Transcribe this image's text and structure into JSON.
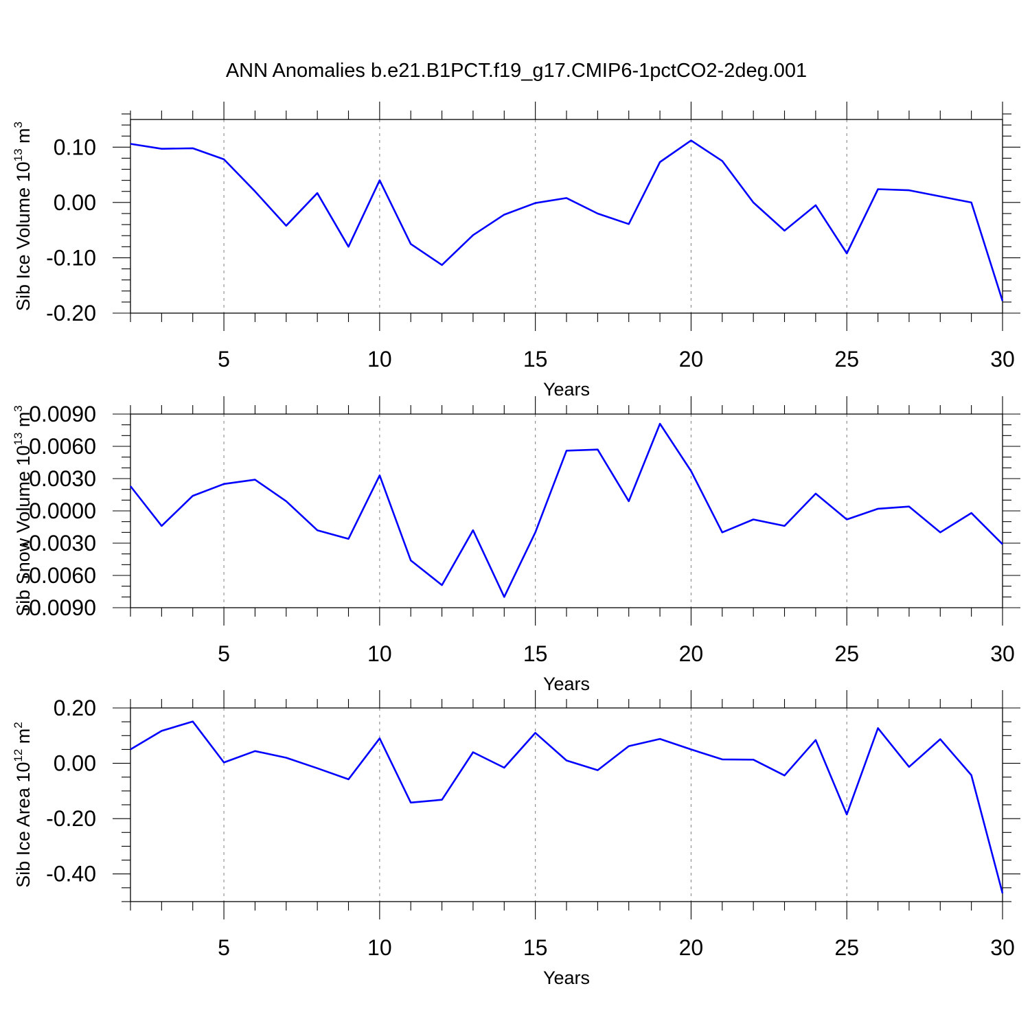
{
  "title": "ANN Anomalies b.e21.B1PCT.f19_g17.CMIP6-1pctCO2-2deg.001",
  "colors": {
    "line": "#0000ff",
    "grid": "#888888",
    "axes": "#000000"
  },
  "chart_data": [
    {
      "type": "line",
      "ylabel_main": "Sib Ice Volume 10",
      "ylabel_exp": "13",
      "ylabel_unit": " m",
      "ylabel_unit_exp": "3",
      "xlabel": "Years",
      "xlim": [
        2,
        30
      ],
      "ylim": [
        -0.2,
        0.15
      ],
      "yticks": [
        0.1,
        0.0,
        -0.1,
        -0.2
      ],
      "ytick_labels": [
        "0.10",
        "0.00",
        "-0.10",
        "-0.20"
      ],
      "yminor_step": 0.02,
      "xticks": [
        5,
        10,
        15,
        20,
        25,
        30
      ],
      "xtick_labels": [
        "5",
        "10",
        "15",
        "20",
        "25",
        "30"
      ],
      "grid_x": "dashed vertical at major ticks",
      "x": [
        2,
        3,
        4,
        5,
        6,
        7,
        8,
        9,
        10,
        11,
        12,
        13,
        14,
        15,
        16,
        17,
        18,
        19,
        20,
        21,
        22,
        23,
        24,
        25,
        26,
        27,
        28,
        29,
        30
      ],
      "y": [
        0.106,
        0.097,
        0.098,
        0.078,
        0.02,
        -0.042,
        0.017,
        -0.08,
        0.04,
        -0.075,
        -0.113,
        -0.059,
        -0.022,
        -0.001,
        0.008,
        -0.02,
        -0.039,
        0.073,
        0.112,
        0.075,
        0.0,
        -0.051,
        -0.005,
        -0.092,
        0.024,
        0.022,
        0.011,
        0.0,
        -0.178
      ]
    },
    {
      "type": "line",
      "ylabel_main": "Sib Snow Volume 10",
      "ylabel_exp": "13",
      "ylabel_unit": " m",
      "ylabel_unit_exp": "3",
      "xlabel": "Years",
      "xlim": [
        2,
        30
      ],
      "ylim": [
        -0.009,
        0.009
      ],
      "yticks": [
        0.009,
        0.006,
        0.003,
        0.0,
        -0.003,
        -0.006,
        -0.009
      ],
      "ytick_labels": [
        "0.0090",
        "0.0060",
        "0.0030",
        "0.0000",
        "-0.0030",
        "-0.0060",
        "-0.0090"
      ],
      "yminor_step": 0.001,
      "xticks": [
        5,
        10,
        15,
        20,
        25,
        30
      ],
      "xtick_labels": [
        "5",
        "10",
        "15",
        "20",
        "25",
        "30"
      ],
      "grid_x": "dashed vertical at major ticks",
      "x": [
        2,
        3,
        4,
        5,
        6,
        7,
        8,
        9,
        10,
        11,
        12,
        13,
        14,
        15,
        16,
        17,
        18,
        19,
        20,
        21,
        22,
        23,
        24,
        25,
        26,
        27,
        28,
        29,
        30
      ],
      "y": [
        0.0023,
        -0.0014,
        0.0014,
        0.0025,
        0.0029,
        0.0009,
        -0.0018,
        -0.0026,
        0.0033,
        -0.0046,
        -0.0069,
        -0.0018,
        -0.008,
        -0.002,
        0.0056,
        0.0057,
        0.0009,
        0.0081,
        0.0037,
        -0.002,
        -0.0008,
        -0.0014,
        0.0016,
        -0.0008,
        0.0002,
        0.0004,
        -0.002,
        -0.0002,
        -0.0031
      ]
    },
    {
      "type": "line",
      "ylabel_main": "Sib Ice Area 10",
      "ylabel_exp": "12",
      "ylabel_unit": " m",
      "ylabel_unit_exp": "2",
      "xlabel": "Years",
      "xlim": [
        2,
        30
      ],
      "ylim": [
        -0.5,
        0.2
      ],
      "yticks": [
        0.2,
        0.0,
        -0.2,
        -0.4
      ],
      "ytick_labels": [
        "0.20",
        "0.00",
        "-0.20",
        "-0.40"
      ],
      "yminor_step": 0.05,
      "xticks": [
        5,
        10,
        15,
        20,
        25,
        30
      ],
      "xtick_labels": [
        "5",
        "10",
        "15",
        "20",
        "25",
        "30"
      ],
      "grid_x": "dashed vertical at major ticks",
      "x": [
        2,
        3,
        4,
        5,
        6,
        7,
        8,
        9,
        10,
        11,
        12,
        13,
        14,
        15,
        16,
        17,
        18,
        19,
        20,
        21,
        22,
        23,
        24,
        25,
        26,
        27,
        28,
        29,
        30
      ],
      "y": [
        0.05,
        0.117,
        0.151,
        0.003,
        0.044,
        0.02,
        -0.018,
        -0.058,
        0.09,
        -0.142,
        -0.132,
        0.04,
        -0.016,
        0.11,
        0.01,
        -0.025,
        0.062,
        0.088,
        0.05,
        0.014,
        0.013,
        -0.044,
        0.084,
        -0.185,
        0.127,
        -0.013,
        0.087,
        -0.043,
        -0.47
      ]
    }
  ]
}
